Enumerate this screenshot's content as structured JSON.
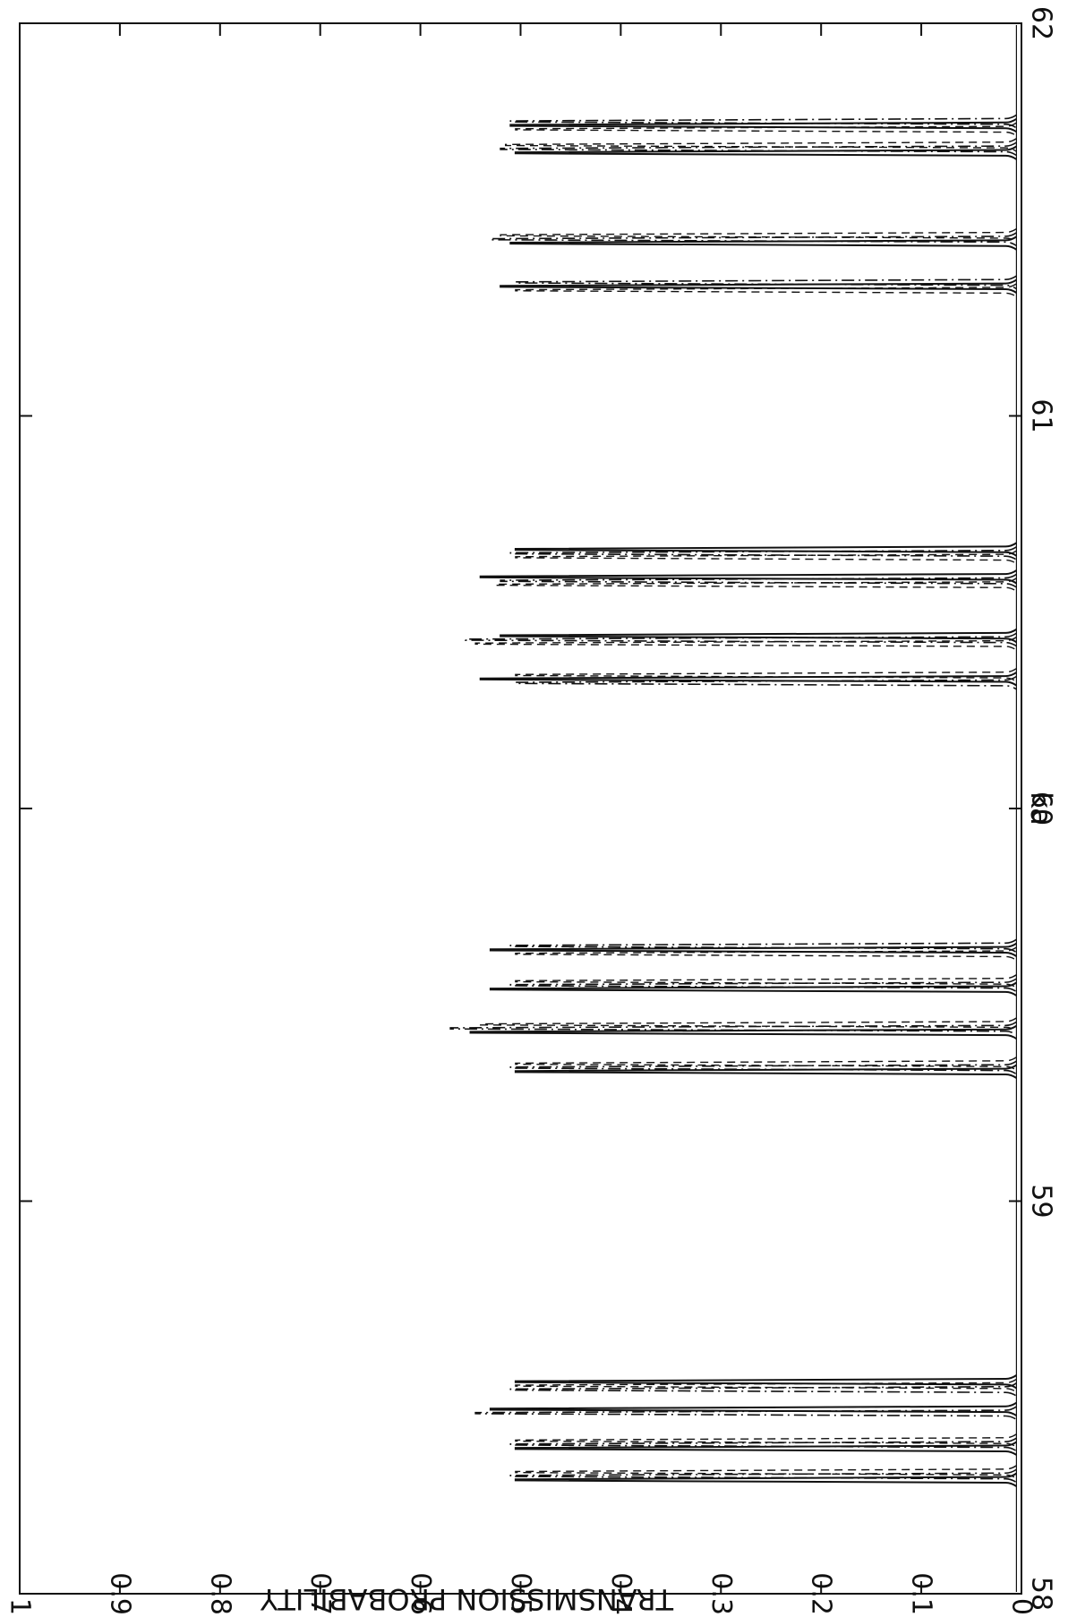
{
  "chart_data": {
    "type": "line",
    "title": "",
    "xlabel": "ka",
    "ylabel": "TRANSMISSION PROBABILITY",
    "xlim": [
      58,
      62
    ],
    "ylim": [
      0,
      1
    ],
    "x_ticks": [
      "58",
      "59",
      "60",
      "61",
      "62"
    ],
    "y_ticks": [
      "0",
      "0.1",
      "0.2",
      "0.3",
      "0.4",
      "0.5",
      "0.6",
      "0.7",
      "0.8",
      "0.9",
      "1"
    ],
    "grid": false,
    "legend": "none",
    "orientation": "rotated 90 degrees clockwise (x axis vertical, y axis horizontal)",
    "series": [
      {
        "line_style": "solid",
        "peaks": [
          {
            "x": 58.29,
            "y": 0.505
          },
          {
            "x": 58.37,
            "y": 0.505
          },
          {
            "x": 58.47,
            "y": 0.53
          },
          {
            "x": 58.54,
            "y": 0.505
          },
          {
            "x": 59.33,
            "y": 0.505
          },
          {
            "x": 59.43,
            "y": 0.55
          },
          {
            "x": 59.54,
            "y": 0.53
          },
          {
            "x": 59.64,
            "y": 0.53
          },
          {
            "x": 60.33,
            "y": 0.54
          },
          {
            "x": 60.44,
            "y": 0.52
          },
          {
            "x": 60.59,
            "y": 0.54
          },
          {
            "x": 60.66,
            "y": 0.505
          },
          {
            "x": 61.33,
            "y": 0.52
          },
          {
            "x": 61.44,
            "y": 0.51
          },
          {
            "x": 61.67,
            "y": 0.505
          },
          {
            "x": 61.74,
            "y": 0.51
          }
        ]
      },
      {
        "line_style": "dash-dot",
        "peaks": [
          {
            "x": 58.3,
            "y": 0.51
          },
          {
            "x": 58.38,
            "y": 0.51
          },
          {
            "x": 58.46,
            "y": 0.545
          },
          {
            "x": 58.52,
            "y": 0.51
          },
          {
            "x": 59.34,
            "y": 0.51
          },
          {
            "x": 59.44,
            "y": 0.57
          },
          {
            "x": 59.55,
            "y": 0.51
          },
          {
            "x": 59.65,
            "y": 0.51
          },
          {
            "x": 60.32,
            "y": 0.505
          },
          {
            "x": 60.43,
            "y": 0.555
          },
          {
            "x": 60.58,
            "y": 0.52
          },
          {
            "x": 60.65,
            "y": 0.51
          },
          {
            "x": 61.34,
            "y": 0.505
          },
          {
            "x": 61.45,
            "y": 0.53
          },
          {
            "x": 61.68,
            "y": 0.52
          },
          {
            "x": 61.75,
            "y": 0.51
          }
        ]
      },
      {
        "line_style": "dashed",
        "peaks": [
          {
            "x": 58.31,
            "y": 0.505
          },
          {
            "x": 58.39,
            "y": 0.505
          },
          {
            "x": 58.47,
            "y": 0.525
          },
          {
            "x": 58.53,
            "y": 0.505
          },
          {
            "x": 59.35,
            "y": 0.505
          },
          {
            "x": 59.45,
            "y": 0.54
          },
          {
            "x": 59.56,
            "y": 0.505
          },
          {
            "x": 59.63,
            "y": 0.505
          },
          {
            "x": 60.34,
            "y": 0.505
          },
          {
            "x": 60.42,
            "y": 0.545
          },
          {
            "x": 60.57,
            "y": 0.525
          },
          {
            "x": 60.64,
            "y": 0.505
          },
          {
            "x": 61.32,
            "y": 0.505
          },
          {
            "x": 61.46,
            "y": 0.52
          },
          {
            "x": 61.69,
            "y": 0.515
          },
          {
            "x": 61.73,
            "y": 0.505
          }
        ]
      }
    ]
  }
}
